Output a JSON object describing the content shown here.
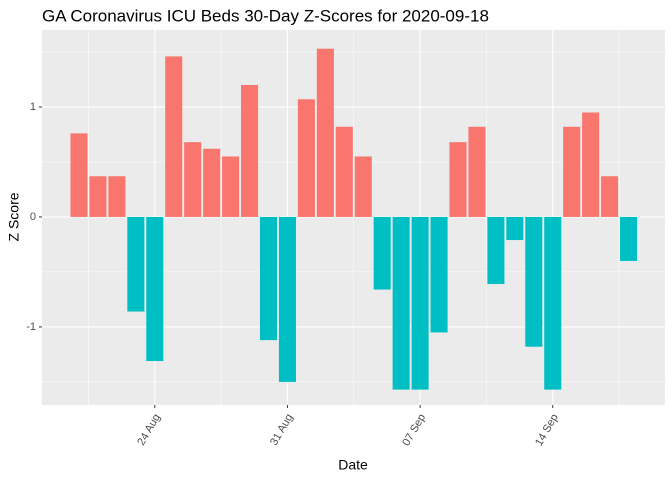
{
  "chart_data": {
    "type": "bar",
    "title": "GA Coronavirus ICU Beds 30-Day Z-Scores for 2020-09-18",
    "x_label": "Date",
    "y_label": "Z Score",
    "categories": [
      null,
      null,
      null,
      null,
      "24 Aug",
      null,
      null,
      null,
      null,
      null,
      null,
      "31 Aug",
      null,
      null,
      null,
      null,
      null,
      null,
      "07 Sep",
      null,
      null,
      null,
      null,
      null,
      null,
      "14 Sep",
      null,
      null,
      null,
      null
    ],
    "values": [
      0.76,
      0.37,
      0.37,
      -0.86,
      -1.31,
      1.46,
      0.68,
      0.62,
      0.55,
      1.2,
      -1.12,
      -1.5,
      1.07,
      1.53,
      0.82,
      0.55,
      -0.66,
      -1.57,
      -1.57,
      -1.05,
      0.68,
      0.82,
      -0.61,
      -0.21,
      -1.18,
      -1.57,
      0.82,
      0.95,
      0.37,
      -0.4
    ],
    "positive_color": "#F8766D",
    "negative_color": "#00BFC4",
    "ylim": [
      -1.71,
      1.7
    ],
    "yticks": [
      -1,
      0,
      1
    ],
    "grid": true
  }
}
